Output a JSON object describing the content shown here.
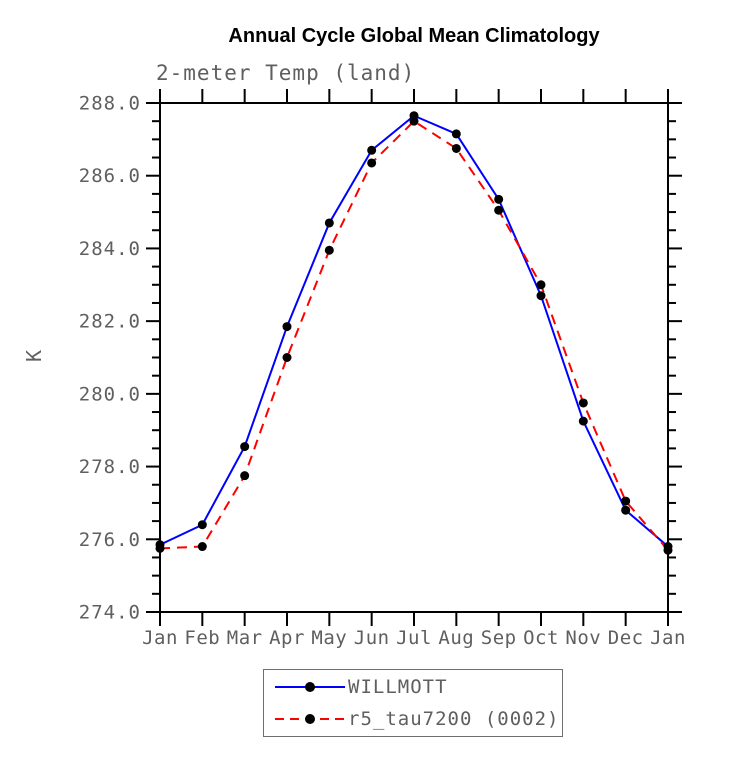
{
  "title": "Annual Cycle Global Mean Climatology",
  "chart_data": {
    "type": "line",
    "title": "Annual Cycle Global Mean Climatology",
    "subtitle": "2-meter Temp (land)",
    "xlabel": "",
    "ylabel": "K",
    "ylim": [
      274.0,
      288.0
    ],
    "y_major_step": 2.0,
    "y_minor_step": 0.5,
    "y_tick_labels": [
      "274.0",
      "276.0",
      "278.0",
      "280.0",
      "282.0",
      "284.0",
      "286.0",
      "288.0"
    ],
    "x_categories": [
      "Jan",
      "Feb",
      "Mar",
      "Apr",
      "May",
      "Jun",
      "Jul",
      "Aug",
      "Sep",
      "Oct",
      "Nov",
      "Dec",
      "Jan"
    ],
    "grid": "off",
    "frame": "box-with-outward-ticks",
    "series": [
      {
        "name": "WILLMOTT",
        "color": "#0000ff",
        "line_style": "solid",
        "marker": "filled-circle",
        "marker_color": "#000000",
        "values": [
          275.85,
          276.4,
          278.55,
          281.85,
          284.7,
          286.7,
          287.65,
          287.15,
          285.35,
          282.7,
          279.25,
          276.8,
          275.8
        ]
      },
      {
        "name": "r5_tau7200 (0002)",
        "color": "#ff0000",
        "line_style": "dashed",
        "marker": "filled-circle",
        "marker_color": "#000000",
        "values": [
          275.75,
          275.8,
          277.75,
          281.0,
          283.95,
          286.35,
          287.5,
          286.75,
          285.05,
          283.0,
          279.75,
          277.05,
          275.7
        ]
      }
    ],
    "legend": {
      "position": "bottom-center",
      "entries": [
        "WILLMOTT",
        "r5_tau7200 (0002)"
      ]
    }
  },
  "colors": {
    "axis": "#000000",
    "tick_text": "#5f5f5f",
    "title_text": "#000000",
    "background": "#ffffff",
    "legend_border": "#6f6f6f"
  }
}
